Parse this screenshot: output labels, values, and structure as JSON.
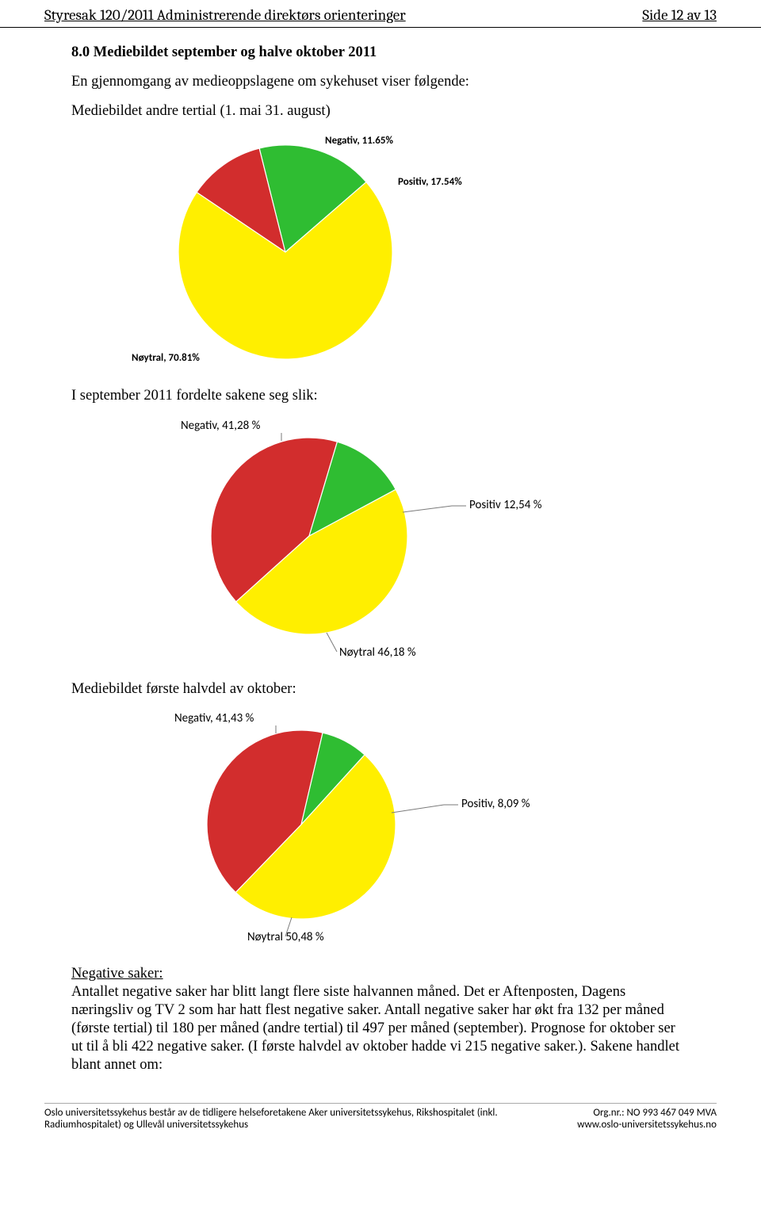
{
  "header": {
    "left": "Styresak 120/2011 Administrerende direktørs orienteringer",
    "right": "Side 12 av 13"
  },
  "section": {
    "heading": "8.0 Mediebildet september og halve oktober 2011",
    "intro": "En gjennomgang av medieoppslagene om sykehuset viser følgende:",
    "caption1": "Mediebildet andre tertial (1. mai 31. august)",
    "caption2": "I september 2011 fordelte sakene seg slik:",
    "caption3": "Mediebildet første halvdel av oktober:",
    "neg_heading": "Negative saker:",
    "neg_body": "Antallet negative saker har blitt langt flere siste halvannen måned. Det er Aftenposten, Dagens næringsliv og TV 2 som har hatt flest negative saker. Antall negative saker har økt fra 132 per måned (første tertial) til 180 per måned (andre tertial) til 497 per måned (september). Prognose for oktober ser ut til å bli 422 negative saker. (I første halvdel av oktober hadde vi 215 negative saker.). Sakene handlet blant annet om:"
  },
  "chart1": {
    "type": "pie",
    "radius": 135,
    "slices": [
      {
        "key": "negativ",
        "value": 11.65,
        "color": "#d22d2d"
      },
      {
        "key": "positiv",
        "value": 17.54,
        "color": "#2fbd32"
      },
      {
        "key": "noytral",
        "value": 70.81,
        "color": "#ffef00"
      }
    ],
    "start_angle_deg": -146,
    "stroke": "#ffffff",
    "stroke_width": 1.2,
    "labels": {
      "negativ": "Negativ, 11.65%",
      "positiv": "Positiv, 17.54%",
      "noytral": "Nøytral, 70.81%"
    },
    "label_fontsize": 13,
    "label_weight": "bold"
  },
  "chart2": {
    "type": "pie",
    "radius": 124,
    "slices": [
      {
        "key": "negativ",
        "value": 41.28,
        "color": "#d22d2d"
      },
      {
        "key": "positiv",
        "value": 12.54,
        "color": "#2fbd32"
      },
      {
        "key": "noytral",
        "value": 46.18,
        "color": "#ffef00"
      }
    ],
    "start_angle_deg": -222,
    "stroke": "#ffffff",
    "stroke_width": 1.2,
    "labels": {
      "negativ": "Negativ, 41,28 %",
      "positiv": "Positiv 12,54 %",
      "noytral": "Nøytral 46,18 %"
    },
    "label_fontsize": 15,
    "leader": {
      "color": "#7a7a7a",
      "width": 1
    }
  },
  "chart3": {
    "type": "pie",
    "radius": 119,
    "slices": [
      {
        "key": "negativ",
        "value": 41.43,
        "color": "#d22d2d"
      },
      {
        "key": "positiv",
        "value": 8.09,
        "color": "#2fbd32"
      },
      {
        "key": "noytral",
        "value": 50.48,
        "color": "#ffef00"
      }
    ],
    "start_angle_deg": -226,
    "stroke": "#ffffff",
    "stroke_width": 1.2,
    "labels": {
      "negativ": "Negativ, 41,43 %",
      "positiv": "Positiv, 8,09 %",
      "noytral": "Nøytral 50,48 %"
    },
    "label_fontsize": 15,
    "leader": {
      "color": "#7a7a7a",
      "width": 1
    }
  },
  "footer": {
    "left_line1": "Oslo universitetssykehus består av de tidligere helseforetakene Aker universitetssykehus, Rikshospitalet (inkl.",
    "left_line2": "Radiumhospitalet) og Ullevål universitetssykehus",
    "right_line1": "Org.nr.: NO 993 467 049 MVA",
    "right_line2": "www.oslo-universitetssykehus.no"
  }
}
